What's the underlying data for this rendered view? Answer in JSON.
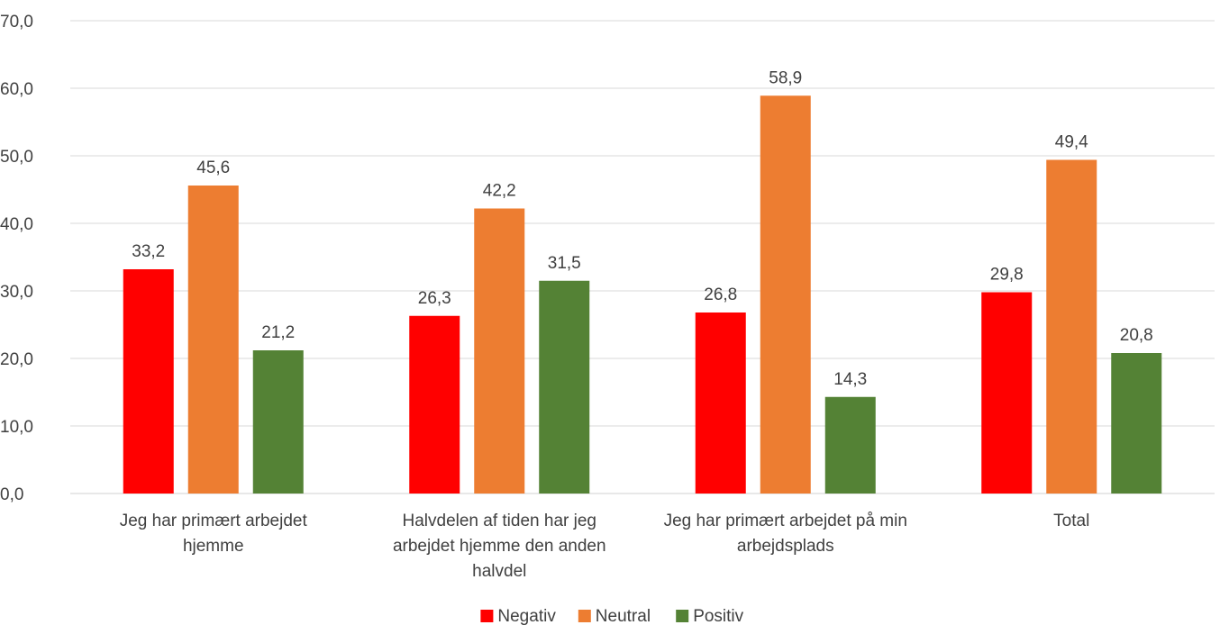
{
  "chart_data": {
    "type": "bar",
    "title": "",
    "xlabel": "",
    "ylabel": "",
    "ylim": [
      0,
      70
    ],
    "ytick_step": 10,
    "yticks": [
      "0,0",
      "10,0",
      "20,0",
      "30,0",
      "40,0",
      "50,0",
      "60,0",
      "70,0"
    ],
    "grid": true,
    "legend_position": "bottom",
    "categories": [
      [
        "Jeg har primært arbejdet",
        "hjemme"
      ],
      [
        "Halvdelen af tiden har jeg",
        "arbejdet hjemme den anden",
        "halvdel"
      ],
      [
        "Jeg har primært arbejdet på min",
        "arbejdsplads"
      ],
      [
        "Total"
      ]
    ],
    "series": [
      {
        "name": "Negativ",
        "color": "#ff0000",
        "values": [
          33.2,
          26.3,
          26.8,
          29.8
        ],
        "labels": [
          "33,2",
          "26,3",
          "26,8",
          "29,8"
        ]
      },
      {
        "name": "Neutral",
        "color": "#ed7d31",
        "values": [
          45.6,
          42.2,
          58.9,
          49.4
        ],
        "labels": [
          "45,6",
          "42,2",
          "58,9",
          "49,4"
        ]
      },
      {
        "name": "Positiv",
        "color": "#548235",
        "values": [
          21.2,
          31.5,
          14.3,
          20.8
        ],
        "labels": [
          "21,2",
          "31,5",
          "14,3",
          "20,8"
        ]
      }
    ]
  }
}
